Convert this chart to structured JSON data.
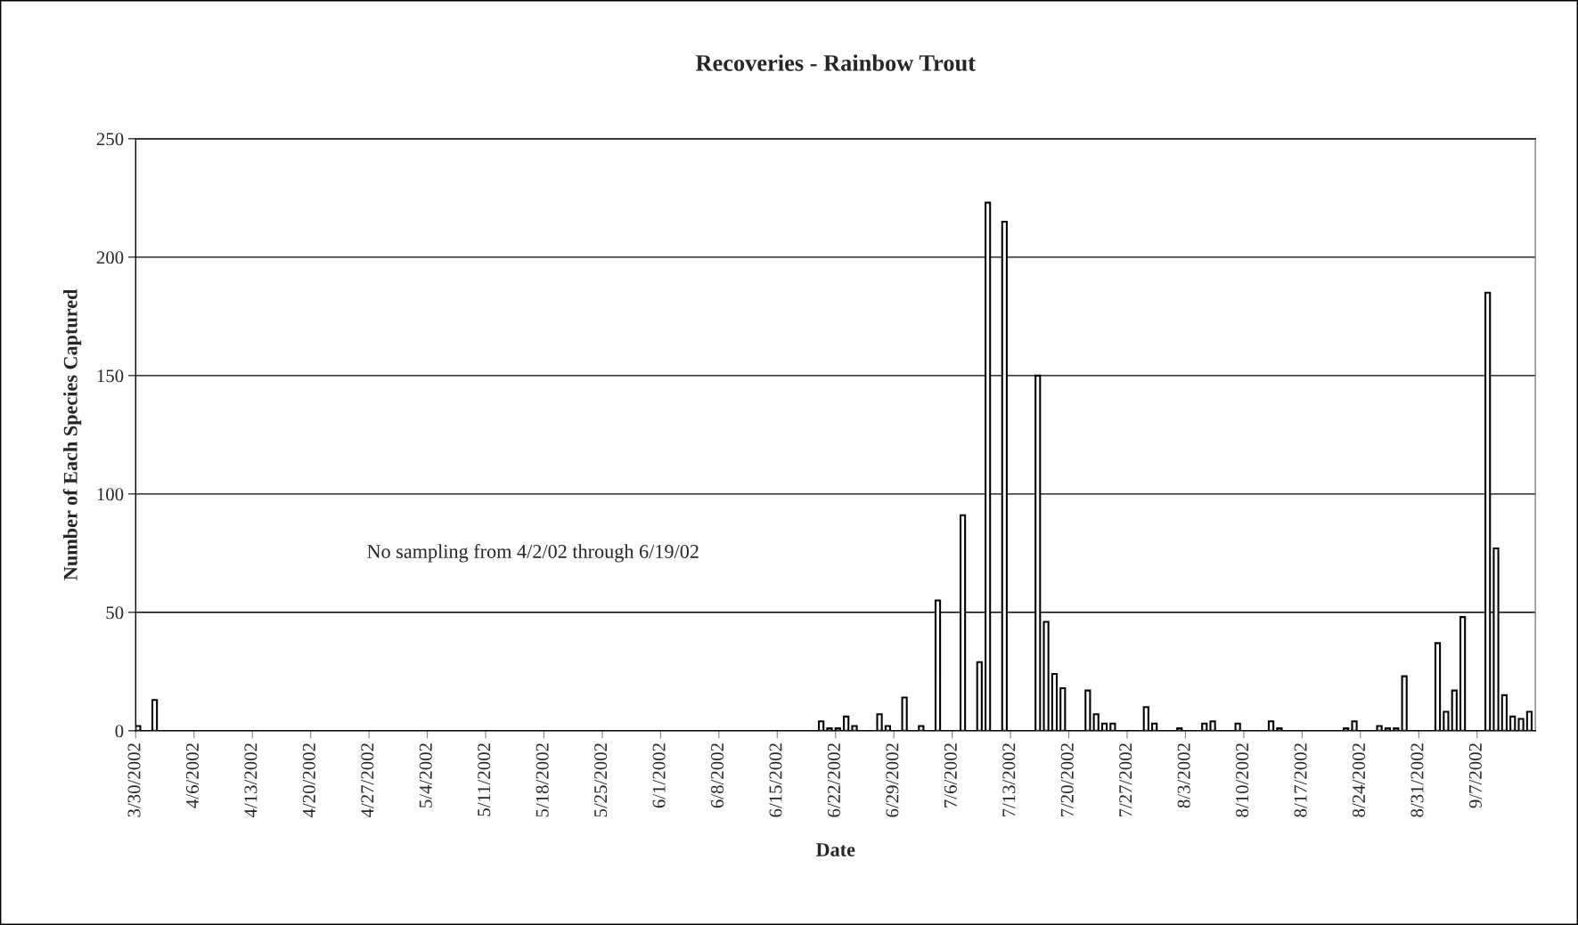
{
  "chart_data": {
    "type": "bar",
    "title": "Recoveries - Rainbow Trout",
    "xlabel": "Date",
    "ylabel": "Number of Each Species Captured",
    "x": [
      "2002-03-30",
      "2002-04-01",
      "2002-06-20",
      "2002-06-21",
      "2002-06-22",
      "2002-06-23",
      "2002-06-24",
      "2002-06-27",
      "2002-06-28",
      "2002-06-30",
      "2002-07-02",
      "2002-07-04",
      "2002-07-07",
      "2002-07-09",
      "2002-07-10",
      "2002-07-12",
      "2002-07-16",
      "2002-07-17",
      "2002-07-18",
      "2002-07-19",
      "2002-07-22",
      "2002-07-23",
      "2002-07-24",
      "2002-07-25",
      "2002-07-29",
      "2002-07-30",
      "2002-08-02",
      "2002-08-05",
      "2002-08-06",
      "2002-08-09",
      "2002-08-13",
      "2002-08-14",
      "2002-08-22",
      "2002-08-23",
      "2002-08-26",
      "2002-08-27",
      "2002-08-28",
      "2002-08-29",
      "2002-09-02",
      "2002-09-03",
      "2002-09-04",
      "2002-09-05",
      "2002-09-08",
      "2002-09-09",
      "2002-09-10",
      "2002-09-11",
      "2002-09-12",
      "2002-09-13"
    ],
    "values": [
      2,
      13,
      4,
      1,
      1,
      6,
      2,
      7,
      2,
      14,
      2,
      55,
      91,
      29,
      223,
      215,
      150,
      46,
      24,
      18,
      17,
      7,
      3,
      3,
      10,
      3,
      1,
      3,
      4,
      3,
      4,
      1,
      1,
      4,
      2,
      1,
      1,
      23,
      37,
      8,
      17,
      48,
      185,
      77,
      15,
      6,
      5,
      8
    ],
    "color": "#ffffff",
    "xlim": [
      "2002-03-30",
      "2002-09-14"
    ],
    "xticks": [
      {
        "value": "2002-03-30",
        "label": "3/30/2002"
      },
      {
        "value": "2002-04-06",
        "label": "4/6/2002"
      },
      {
        "value": "2002-04-13",
        "label": "4/13/2002"
      },
      {
        "value": "2002-04-20",
        "label": "4/20/2002"
      },
      {
        "value": "2002-04-27",
        "label": "4/27/2002"
      },
      {
        "value": "2002-05-04",
        "label": "5/4/2002"
      },
      {
        "value": "2002-05-11",
        "label": "5/11/2002"
      },
      {
        "value": "2002-05-18",
        "label": "5/18/2002"
      },
      {
        "value": "2002-05-25",
        "label": "5/25/2002"
      },
      {
        "value": "2002-06-01",
        "label": "6/1/2002"
      },
      {
        "value": "2002-06-08",
        "label": "6/8/2002"
      },
      {
        "value": "2002-06-15",
        "label": "6/15/2002"
      },
      {
        "value": "2002-06-22",
        "label": "6/22/2002"
      },
      {
        "value": "2002-06-29",
        "label": "6/29/2002"
      },
      {
        "value": "2002-07-06",
        "label": "7/6/2002"
      },
      {
        "value": "2002-07-13",
        "label": "7/13/2002"
      },
      {
        "value": "2002-07-20",
        "label": "7/20/2002"
      },
      {
        "value": "2002-07-27",
        "label": "7/27/2002"
      },
      {
        "value": "2002-08-03",
        "label": "8/3/2002"
      },
      {
        "value": "2002-08-10",
        "label": "8/10/2002"
      },
      {
        "value": "2002-08-17",
        "label": "8/17/2002"
      },
      {
        "value": "2002-08-24",
        "label": "8/24/2002"
      },
      {
        "value": "2002-08-31",
        "label": "8/31/2002"
      },
      {
        "value": "2002-09-07",
        "label": "9/7/2002"
      }
    ],
    "ylim": [
      0,
      250
    ],
    "yticks": [
      0,
      50,
      100,
      150,
      200,
      250
    ],
    "grid": "y",
    "legend": false,
    "annotations": [
      "No sampling from 4/2/02 through 6/19/02"
    ]
  }
}
